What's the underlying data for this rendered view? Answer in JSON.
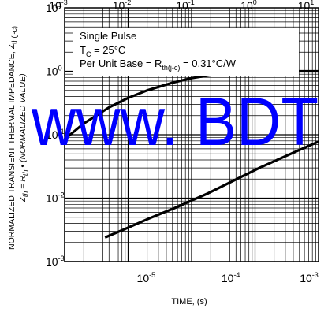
{
  "chart_data": {
    "type": "line",
    "title": "",
    "xlabel": "TIME, (s)",
    "ylabel_line1": "NORMALIZED TRANSIENT THERMAL IMPEDANCE, Z",
    "ylabel_line1_sub": "th(j-c)",
    "ylabel_line2_pre": "Z",
    "ylabel_line2_pre_sub": "th",
    "ylabel_line2_mid": " = R",
    "ylabel_line2_mid_sub": "th",
    "ylabel_line2_post": " • (NORMALIZED VALUE)",
    "xscale": "log",
    "yscale": "log",
    "grid": true,
    "top_axis": {
      "xlim": [
        0.001,
        10
      ],
      "ticks": [
        {
          "base": "10",
          "exp": "-3"
        },
        {
          "base": "10",
          "exp": "-2"
        },
        {
          "base": "10",
          "exp": "-1"
        },
        {
          "base": "10",
          "exp": "0"
        },
        {
          "base": "10",
          "exp": "1"
        }
      ]
    },
    "bottom_axis": {
      "xlim": [
        1e-06,
        0.001
      ],
      "ticks": [
        {
          "base": "10",
          "exp": "-5"
        },
        {
          "base": "10",
          "exp": "-4"
        },
        {
          "base": "10",
          "exp": "-3"
        }
      ]
    },
    "y_axis": {
      "ylim": [
        0.001,
        10
      ],
      "ticks": [
        {
          "base": "10",
          "exp": "1"
        },
        {
          "base": "10",
          "exp": "0"
        },
        {
          "base": "10",
          "exp": "-1"
        },
        {
          "base": "10",
          "exp": "-2"
        },
        {
          "base": "10",
          "exp": "-3"
        }
      ]
    },
    "series": [
      {
        "axis": "top",
        "x": [
          0.001,
          0.002,
          0.005,
          0.01,
          0.02,
          0.05,
          0.1,
          0.2,
          0.5,
          1,
          2,
          5,
          10
        ],
        "y": [
          0.085,
          0.15,
          0.27,
          0.38,
          0.5,
          0.66,
          0.78,
          0.87,
          0.95,
          0.98,
          0.99,
          1.0,
          1.0
        ]
      },
      {
        "axis": "bottom",
        "x": [
          3e-06,
          5e-06,
          1e-05,
          2e-05,
          5e-05,
          0.0001,
          0.0002,
          0.0005,
          0.001
        ],
        "y": [
          0.0024,
          0.0032,
          0.0048,
          0.007,
          0.012,
          0.019,
          0.03,
          0.052,
          0.078
        ]
      }
    ]
  },
  "legend": {
    "line1": "Single Pulse",
    "line2_pre": "T",
    "line2_sub": "C",
    "line2_post": " = 25°C",
    "line3_pre": "Per Unit Base = R",
    "line3_sub": "th(j-c)",
    "line3_post": " = 0.31°C/W"
  },
  "watermark": "www. BDT",
  "colors": {
    "axis": "#000000",
    "grid": "#000000",
    "curve": "#000000",
    "watermark": "#0000ff",
    "background": "#ffffff"
  }
}
